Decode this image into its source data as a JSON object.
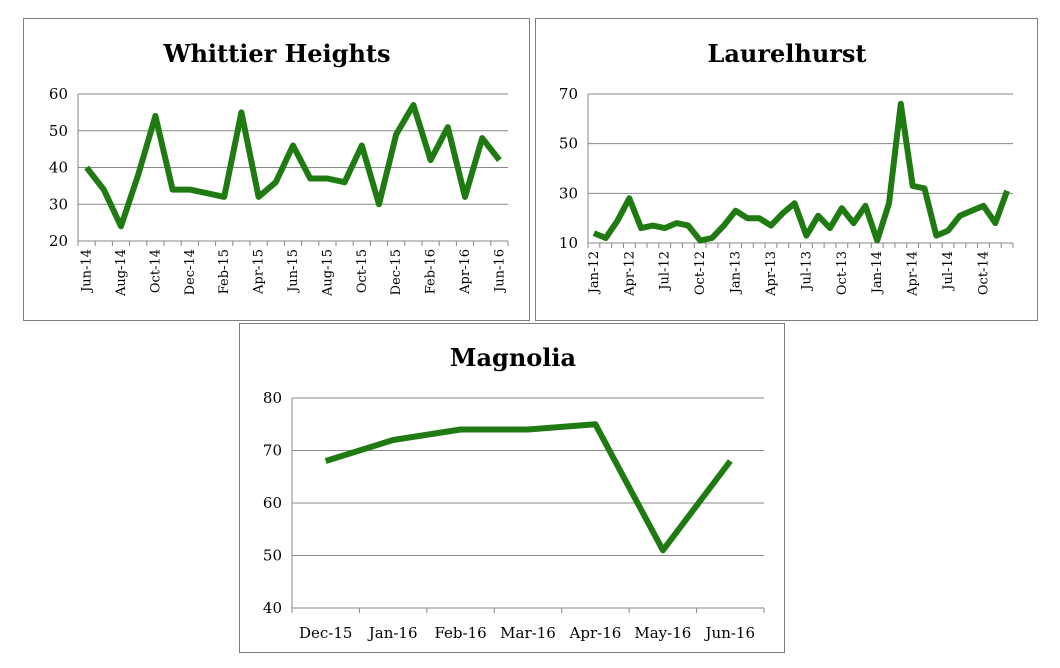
{
  "chart_data": [
    {
      "type": "line",
      "title": "Whittier Heights",
      "xlabel": "",
      "ylabel": "",
      "ylim": [
        20,
        60
      ],
      "yticks": [
        20,
        30,
        40,
        50,
        60
      ],
      "grid": true,
      "color": "#1f7a12",
      "x": [
        "Jun-14",
        "Jul-14",
        "Aug-14",
        "Sep-14",
        "Oct-14",
        "Nov-14",
        "Dec-14",
        "Jan-15",
        "Feb-15",
        "Mar-15",
        "Apr-15",
        "May-15",
        "Jun-15",
        "Jul-15",
        "Aug-15",
        "Sep-15",
        "Oct-15",
        "Nov-15",
        "Dec-15",
        "Jan-16",
        "Feb-16",
        "Mar-16",
        "Apr-16",
        "May-16",
        "Jun-16"
      ],
      "xtick_labels": [
        "Jun-14",
        "Aug-14",
        "Oct-14",
        "Dec-14",
        "Feb-15",
        "Apr-15",
        "Jun-15",
        "Aug-15",
        "Oct-15",
        "Dec-15",
        "Feb-16",
        "Apr-16",
        "Jun-16"
      ],
      "series": [
        {
          "values": [
            40,
            34,
            24,
            38,
            54,
            34,
            34,
            33,
            32,
            55,
            32,
            36,
            46,
            37,
            37,
            36,
            46,
            30,
            49,
            57,
            42,
            51,
            32,
            48,
            42
          ]
        }
      ]
    },
    {
      "type": "line",
      "title": "Laurelhurst",
      "xlabel": "",
      "ylabel": "",
      "ylim": [
        10,
        70
      ],
      "yticks": [
        10,
        30,
        50,
        70
      ],
      "grid": true,
      "color": "#1f7a12",
      "x": [
        "Jan-12",
        "Feb-12",
        "Mar-12",
        "Apr-12",
        "May-12",
        "Jun-12",
        "Jul-12",
        "Aug-12",
        "Sep-12",
        "Oct-12",
        "Nov-12",
        "Dec-12",
        "Jan-13",
        "Feb-13",
        "Mar-13",
        "Apr-13",
        "May-13",
        "Jun-13",
        "Jul-13",
        "Aug-13",
        "Sep-13",
        "Oct-13",
        "Nov-13",
        "Dec-13",
        "Jan-14",
        "Feb-14",
        "Mar-14",
        "Apr-14",
        "May-14",
        "Jun-14",
        "Jul-14",
        "Aug-14",
        "Sep-14",
        "Oct-14",
        "Nov-14",
        "Dec-14"
      ],
      "xtick_labels": [
        "Jan-12",
        "Apr-12",
        "Jul-12",
        "Oct-12",
        "Jan-13",
        "Apr-13",
        "Jul-13",
        "Oct-13",
        "Jan-14",
        "Apr-14",
        "Jul-14",
        "Oct-14"
      ],
      "series": [
        {
          "values": [
            14,
            12,
            19,
            28,
            16,
            17,
            16,
            18,
            17,
            11,
            12,
            17,
            23,
            20,
            20,
            17,
            22,
            26,
            13,
            21,
            16,
            24,
            18,
            25,
            11,
            26,
            66,
            33,
            32,
            13,
            15,
            21,
            23,
            25,
            18,
            31
          ]
        }
      ]
    },
    {
      "type": "line",
      "title": "Magnolia",
      "xlabel": "",
      "ylabel": "",
      "ylim": [
        40,
        80
      ],
      "yticks": [
        40,
        50,
        60,
        70,
        80
      ],
      "grid": true,
      "color": "#1f7a12",
      "x": [
        "Dec-15",
        "Jan-16",
        "Feb-16",
        "Mar-16",
        "Apr-16",
        "May-16",
        "Jun-16"
      ],
      "xtick_labels": [
        "Dec-15",
        "Jan-16",
        "Feb-16",
        "Mar-16",
        "Apr-16",
        "May-16",
        "Jun-16"
      ],
      "series": [
        {
          "values": [
            68,
            72,
            74,
            74,
            75,
            51,
            68
          ]
        }
      ]
    }
  ]
}
